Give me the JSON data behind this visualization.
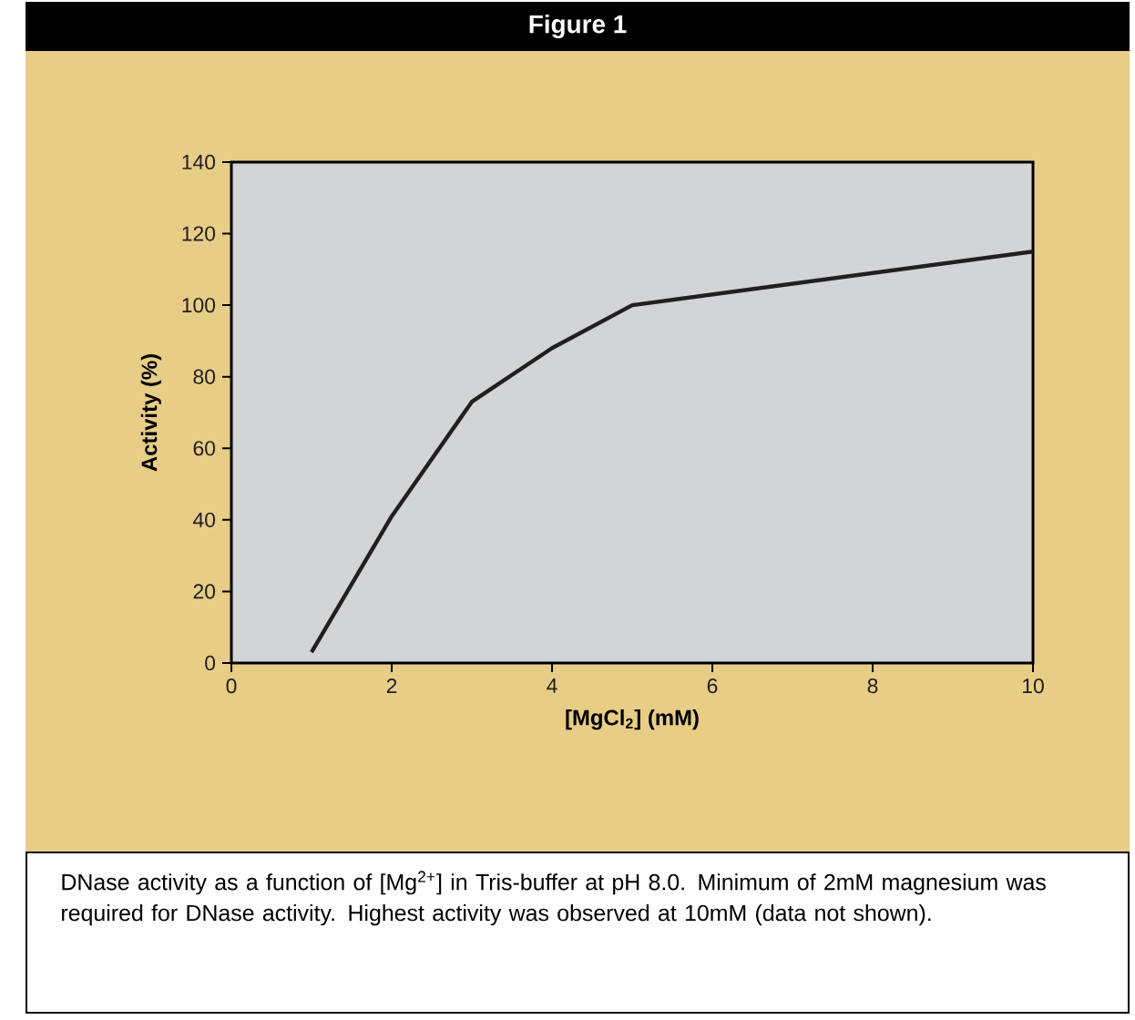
{
  "chart_data": {
    "type": "line",
    "title": "Figure 1",
    "xlabel": "[MgCl$_{2}$] (mM)",
    "ylabel": "Activity (%)",
    "x": [
      1,
      2,
      3,
      4,
      5,
      10
    ],
    "series": [
      {
        "color": "#231f20",
        "values": [
          3,
          41,
          73,
          88,
          100,
          115
        ]
      }
    ],
    "xlim": [
      0,
      10
    ],
    "xticks": [
      0,
      2,
      4,
      6,
      8,
      10
    ],
    "ylim": [
      0,
      140
    ],
    "yticks": [
      0,
      20,
      40,
      60,
      80,
      100,
      120,
      140
    ],
    "grid": false,
    "marker": "none",
    "line_style": "solid",
    "annotations": [
      "DNase activity as a function of [Mg$^{2+}$] in Tris-buffer at pH 8.0. Minimum of 2mM magnesium was required for DNase activity. Highest activity was observed at 10mM (data not shown)."
    ]
  }
}
